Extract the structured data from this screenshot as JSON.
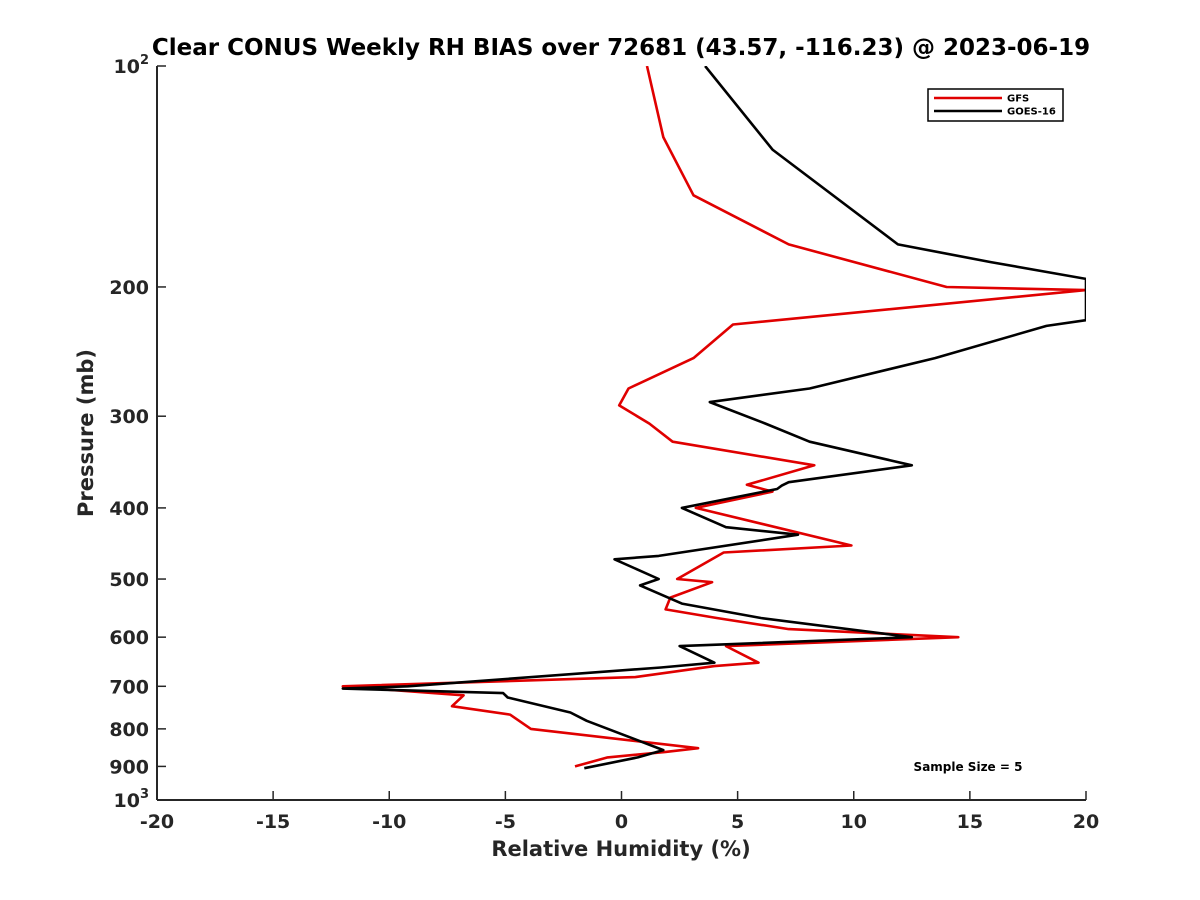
{
  "chart_data": {
    "type": "line",
    "title": "Clear CONUS Weekly RH BIAS over 72681 (43.57, -116.23) @ 2023-06-19",
    "xlabel": "Relative Humidity (%)",
    "ylabel": "Pressure (mb)",
    "xlim": [
      -20,
      20
    ],
    "ylim": [
      1000,
      100
    ],
    "yscale": "log",
    "y_reversed": true,
    "grid": false,
    "legend_position": "top-right",
    "x_ticks": [
      -20,
      -15,
      -10,
      -5,
      0,
      5,
      10,
      15,
      20
    ],
    "x_tick_labels": [
      "-20",
      "-15",
      "-10",
      "-5",
      "0",
      "5",
      "10",
      "15",
      "20"
    ],
    "y_ticks": [
      {
        "value": 100,
        "base": "10",
        "exp": "2"
      },
      {
        "value": 200,
        "label": "200"
      },
      {
        "value": 300,
        "label": "300"
      },
      {
        "value": 400,
        "label": "400"
      },
      {
        "value": 500,
        "label": "500"
      },
      {
        "value": 600,
        "label": "600"
      },
      {
        "value": 700,
        "label": "700"
      },
      {
        "value": 800,
        "label": "800"
      },
      {
        "value": 900,
        "label": "900"
      },
      {
        "value": 1000,
        "base": "10",
        "exp": "3"
      }
    ],
    "annotation": "Sample Size = 5",
    "series": [
      {
        "name": "GFS",
        "color": "#e00000",
        "points": [
          [
            1.1,
            100
          ],
          [
            1.8,
            125
          ],
          [
            3.1,
            150
          ],
          [
            7.2,
            175
          ],
          [
            14,
            200
          ],
          [
            20,
            202
          ],
          [
            4.8,
            225
          ],
          [
            3.1,
            250
          ],
          [
            0.3,
            275
          ],
          [
            -0.1,
            290
          ],
          [
            1.2,
            307
          ],
          [
            2.2,
            325
          ],
          [
            8.3,
            350
          ],
          [
            5.4,
            372
          ],
          [
            6.5,
            380
          ],
          [
            3.2,
            400
          ],
          [
            9.9,
            450
          ],
          [
            4.4,
            460
          ],
          [
            2.4,
            500
          ],
          [
            3.9,
            505
          ],
          [
            2.1,
            530
          ],
          [
            1.9,
            550
          ],
          [
            4.1,
            565
          ],
          [
            7.2,
            585
          ],
          [
            14.5,
            600
          ],
          [
            4.5,
            617
          ],
          [
            5.9,
            650
          ],
          [
            4.0,
            657
          ],
          [
            0.6,
            680
          ],
          [
            -12,
            700
          ],
          [
            -6.8,
            720
          ],
          [
            -7.3,
            745
          ],
          [
            -4.8,
            765
          ],
          [
            -3.9,
            800
          ],
          [
            3.3,
            850
          ],
          [
            1.9,
            860
          ],
          [
            -0.6,
            875
          ],
          [
            -2,
            900
          ]
        ]
      },
      {
        "name": "GOES-16",
        "color": "#000000",
        "points": [
          [
            3.6,
            100
          ],
          [
            6.5,
            130
          ],
          [
            11.9,
            175
          ],
          [
            15.9,
            185
          ],
          [
            20,
            195
          ],
          [
            20,
            222
          ],
          [
            18.3,
            226
          ],
          [
            13.5,
            250
          ],
          [
            8.1,
            275
          ],
          [
            3.8,
            287
          ],
          [
            6.2,
            307
          ],
          [
            8.1,
            325
          ],
          [
            12.5,
            350
          ],
          [
            7.2,
            369
          ],
          [
            6.9,
            373
          ],
          [
            6.7,
            377
          ],
          [
            2.6,
            400
          ],
          [
            4.5,
            425
          ],
          [
            7.6,
            435
          ],
          [
            1.6,
            465
          ],
          [
            -0.3,
            470
          ],
          [
            1.6,
            500
          ],
          [
            0.8,
            510
          ],
          [
            2.6,
            540
          ],
          [
            6.0,
            565
          ],
          [
            12.5,
            600
          ],
          [
            2.5,
            617
          ],
          [
            4.0,
            650
          ],
          [
            1.7,
            660
          ],
          [
            -9.2,
            700
          ],
          [
            -12,
            705
          ],
          [
            -5.1,
            715
          ],
          [
            -4.9,
            725
          ],
          [
            -2.2,
            760
          ],
          [
            -1.5,
            780
          ],
          [
            1.8,
            855
          ],
          [
            0.7,
            875
          ],
          [
            -1.6,
            905
          ]
        ]
      }
    ]
  }
}
